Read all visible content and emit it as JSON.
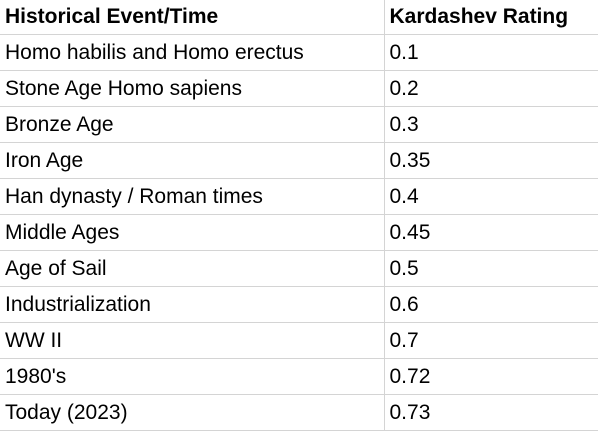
{
  "table": {
    "headers": [
      "Historical Event/Time",
      "Kardashev Rating"
    ],
    "rows": [
      [
        "Homo habilis and Homo erectus",
        "0.1"
      ],
      [
        "Stone Age Homo sapiens",
        "0.2"
      ],
      [
        "Bronze Age",
        "0.3"
      ],
      [
        "Iron Age",
        "0.35"
      ],
      [
        "Han dynasty / Roman times",
        "0.4"
      ],
      [
        "Middle Ages",
        "0.45"
      ],
      [
        "Age of Sail",
        "0.5"
      ],
      [
        "Industrialization",
        "0.6"
      ],
      [
        "WW II",
        "0.7"
      ],
      [
        "1980's",
        "0.72"
      ],
      [
        "Today (2023)",
        "0.73"
      ]
    ]
  },
  "colors": {
    "gridline": "#d4d4d4",
    "text": "#000000",
    "background": "#ffffff"
  }
}
